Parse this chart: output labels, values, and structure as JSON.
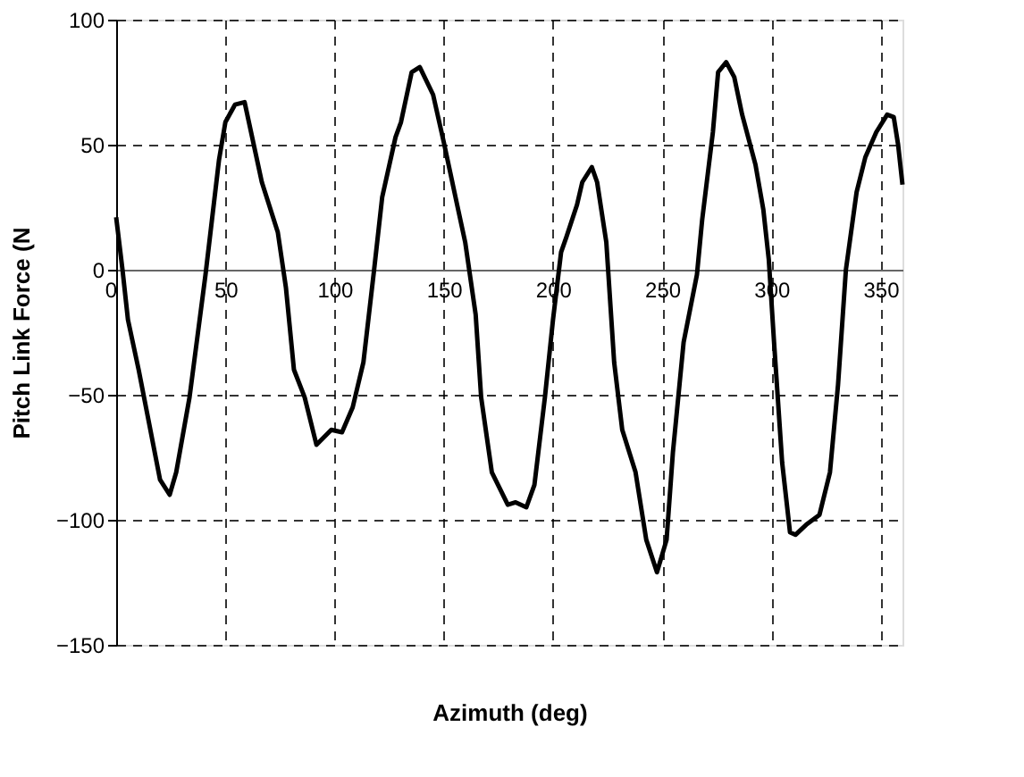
{
  "chart_data": {
    "type": "line",
    "xlabel": "Azimuth (deg)",
    "ylabel": "Pitch Link Force (N",
    "xlim": [
      0,
      360
    ],
    "xticks": [
      0,
      50,
      100,
      150,
      200,
      250,
      300,
      350
    ],
    "ylim": [
      -150,
      100
    ],
    "yticks": [
      -150,
      -100,
      -50,
      0,
      50,
      100
    ],
    "grid": true,
    "series": [
      {
        "color": "#000000",
        "x": [
          0,
          2.9,
          5.4,
          10.3,
          15.2,
          20.1,
          24.5,
          27.5,
          33.6,
          40.9,
          47.1,
          50,
          54.4,
          58.8,
          66.7,
          74,
          77.7,
          81.4,
          86.3,
          91.7,
          98.5,
          103.4,
          108.3,
          113.2,
          118.1,
          121.8,
          127.9,
          130.4,
          135.3,
          139,
          145.1,
          150,
          156.1,
          159.8,
          164.6,
          167.1,
          172,
          179.3,
          182.9,
          187.8,
          191.5,
          196.3,
          200,
          203.7,
          206.1,
          211,
          213.4,
          217.8,
          220.2,
          224.4,
          228,
          231.7,
          237.8,
          242.7,
          247.6,
          252,
          254.9,
          259.8,
          265.9,
          268.3,
          273.2,
          275.6,
          279.3,
          283,
          286.6,
          292.7,
          296.3,
          298.8,
          301.2,
          304.9,
          308.5,
          311,
          315.9,
          322,
          326.8,
          330.5,
          334.1,
          339,
          343,
          348,
          353,
          356,
          358,
          360
        ],
        "values": [
          21,
          0,
          -20,
          -40,
          -62,
          -84,
          -90,
          -81,
          -51,
          -2,
          44,
          59,
          66,
          67,
          35,
          15,
          -7,
          -40,
          -51,
          -70,
          -64,
          -65,
          -55,
          -37,
          0,
          29,
          53,
          59,
          79,
          81,
          70,
          51,
          26,
          11,
          -18,
          -51,
          -81,
          -94,
          -93,
          -95,
          -86,
          -51,
          -20,
          7,
          13,
          26,
          35,
          41,
          35,
          11,
          -37,
          -64,
          -81,
          -108,
          -121,
          -108,
          -73,
          -29,
          -2,
          20,
          55,
          79,
          83,
          77,
          62,
          42,
          24,
          4,
          -29,
          -77,
          -105,
          -106,
          -102,
          -98,
          -81,
          -46,
          0,
          31,
          45,
          55,
          62,
          61,
          50,
          34
        ]
      }
    ]
  }
}
